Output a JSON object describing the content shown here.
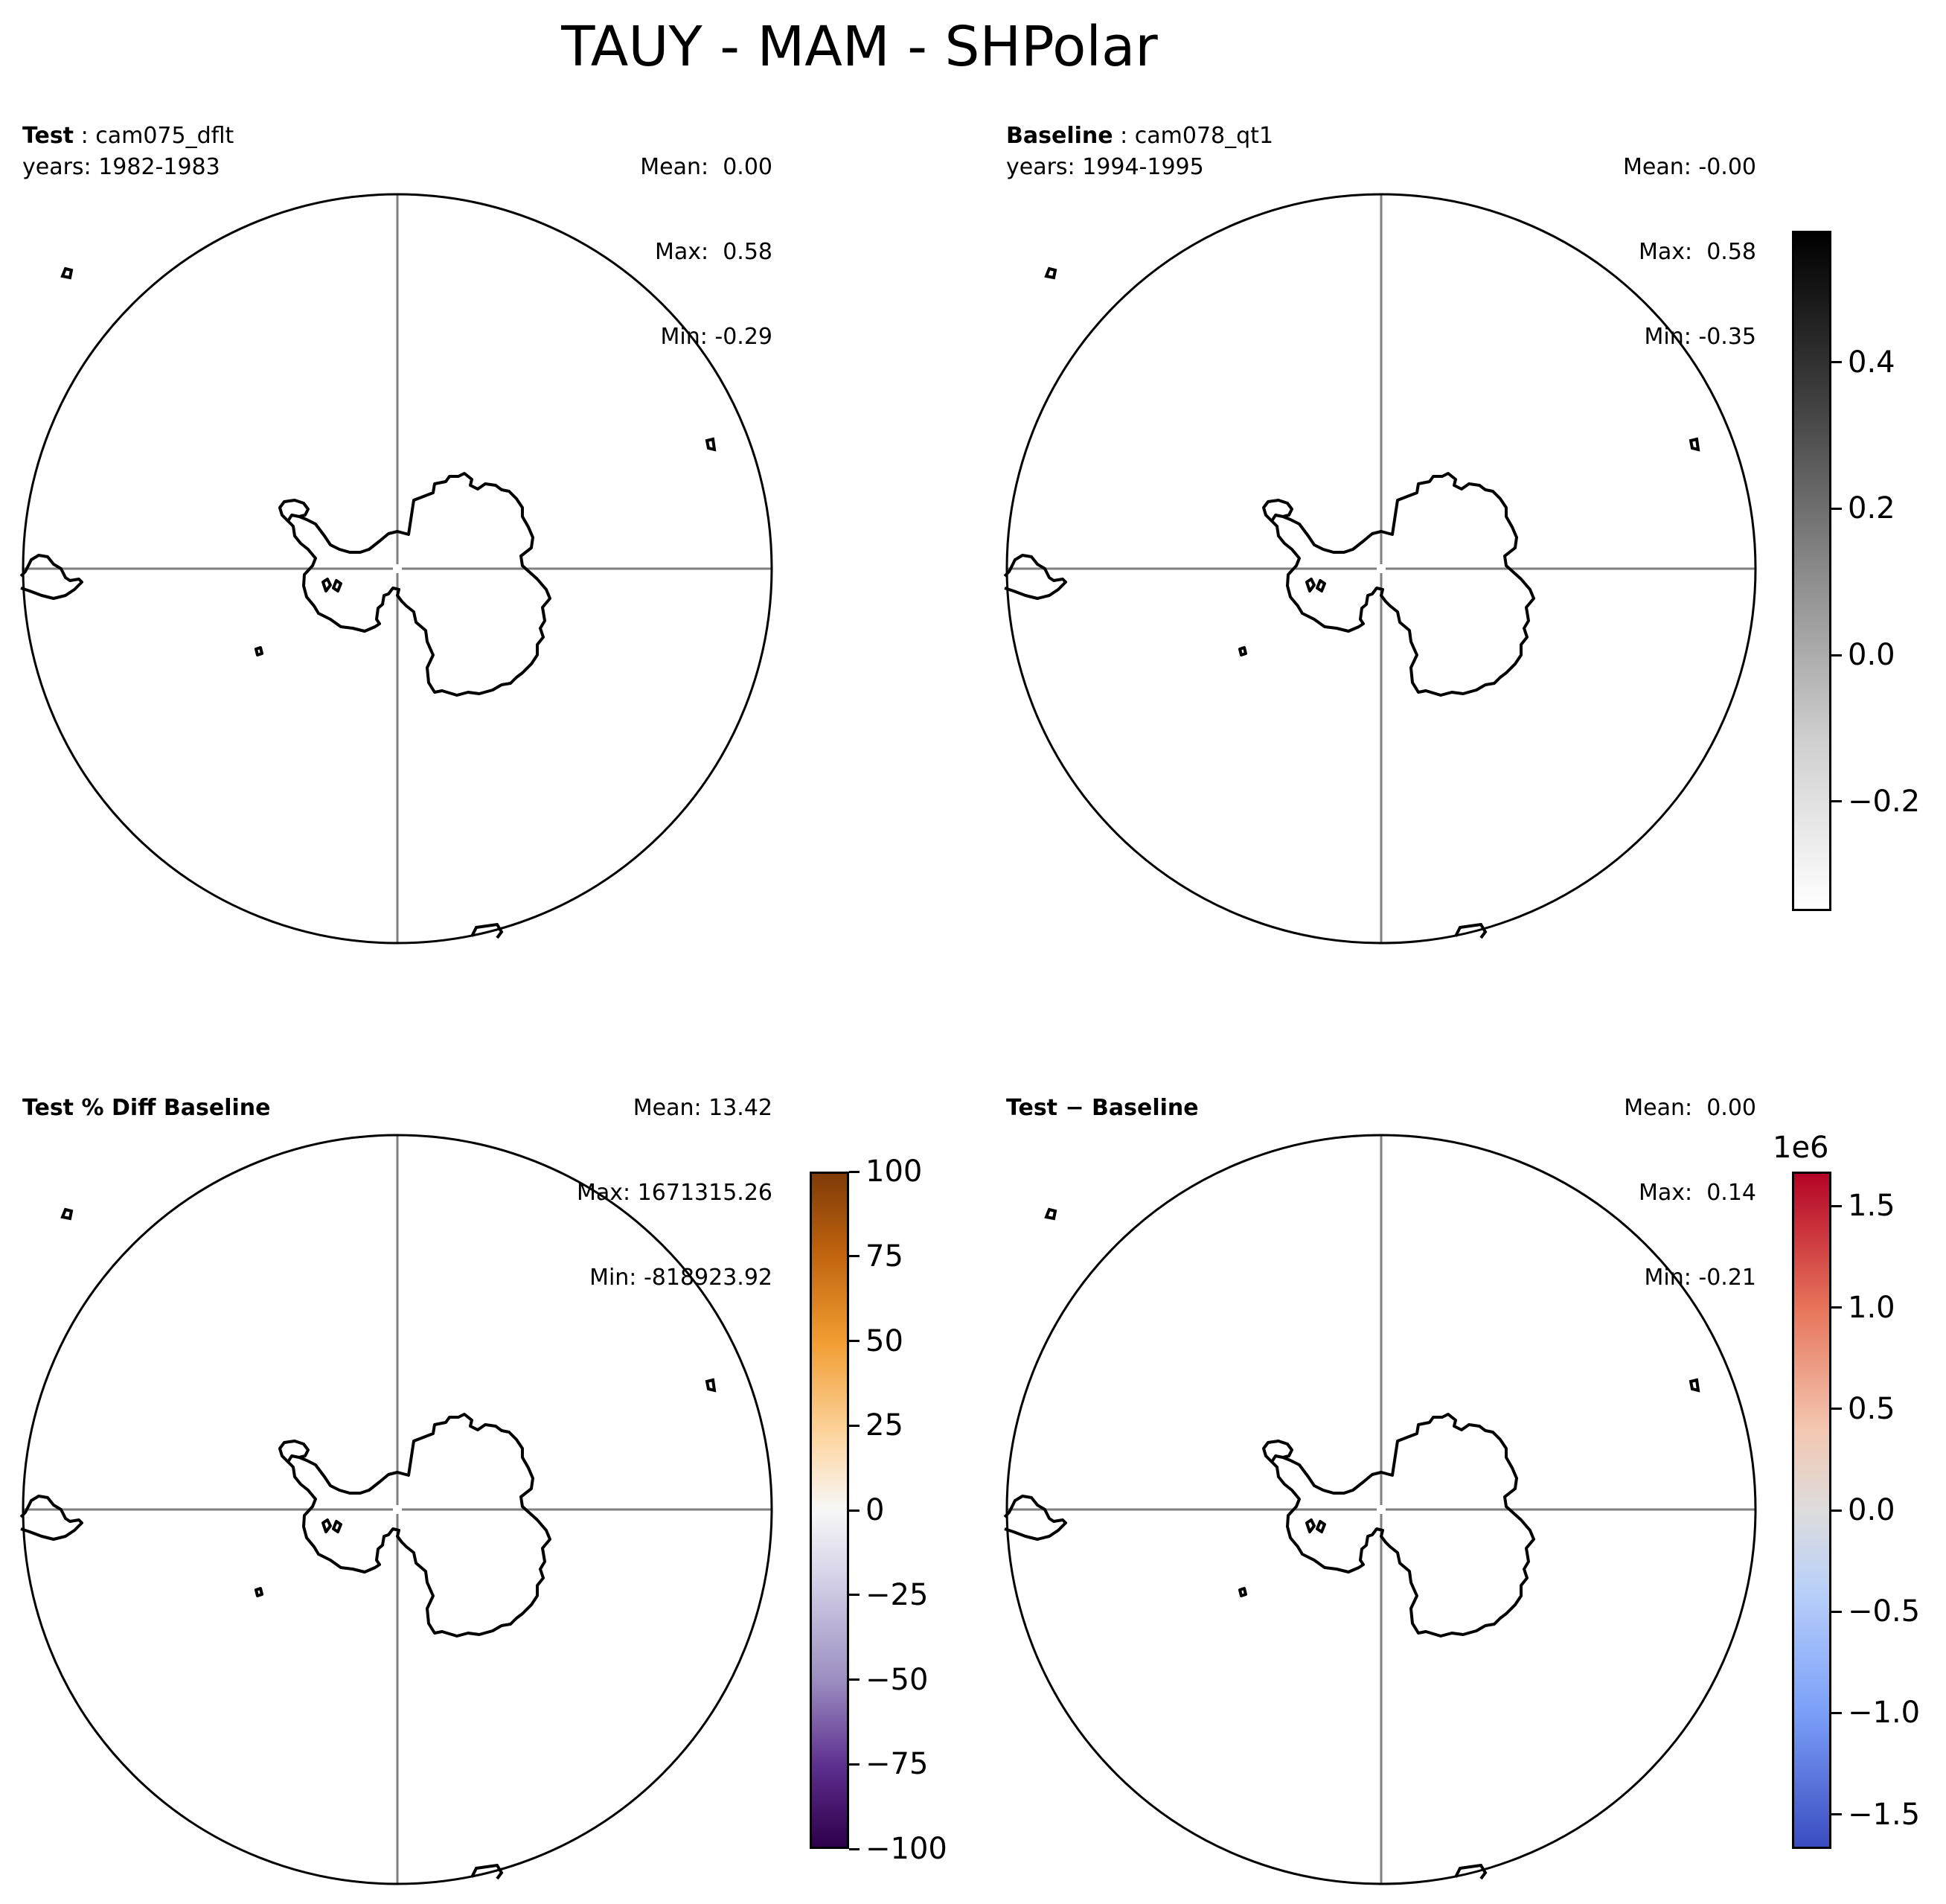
{
  "title": "TAUY - MAM - SHPolar",
  "panels": {
    "test": {
      "label_bold": "Test",
      "label_rest": " : cam075_dflt",
      "years": "years: 1982-1983",
      "mean": "Mean:  0.00",
      "max": "Max:  0.58",
      "min": "Min: -0.29"
    },
    "baseline": {
      "label_bold": "Baseline",
      "label_rest": " : cam078_qt1",
      "years": "years: 1994-1995",
      "mean": "Mean: -0.00",
      "max": "Max:  0.58",
      "min": "Min: -0.35"
    },
    "pctdiff": {
      "label_bold": "Test % Diff Baseline",
      "mean": "Mean: 13.42",
      "max": "Max: 1671315.26",
      "min": "Min: -818923.92"
    },
    "diff": {
      "label_bold": "Test − Baseline",
      "mean": "Mean:  0.00",
      "max": "Max:  0.14",
      "min": "Min: -0.21"
    }
  },
  "colorbars": {
    "gray": {
      "ticks": [
        "0.4",
        "0.2",
        "0.0",
        "−0.2"
      ],
      "tick_values": [
        0.4,
        0.2,
        0.0,
        -0.2
      ],
      "range": [
        -0.35,
        0.58
      ],
      "colormap": "Greys"
    },
    "puor": {
      "ticks": [
        "100",
        "75",
        "50",
        "25",
        "0",
        "−25",
        "−50",
        "−75",
        "−100"
      ],
      "tick_values": [
        100,
        75,
        50,
        25,
        0,
        -25,
        -50,
        -75,
        -100
      ],
      "range": [
        -100,
        100
      ],
      "colormap": "PuOr_r"
    },
    "coolwarm": {
      "offset": "1e6",
      "ticks": [
        "1.5",
        "1.0",
        "0.5",
        "0.0",
        "−0.5",
        "−1.0",
        "−1.5"
      ],
      "tick_values": [
        1.5,
        1.0,
        0.5,
        0.0,
        -0.5,
        -1.0,
        -1.5
      ],
      "range": [
        -1.67,
        1.67
      ],
      "colormap": "coolwarm"
    }
  }
}
